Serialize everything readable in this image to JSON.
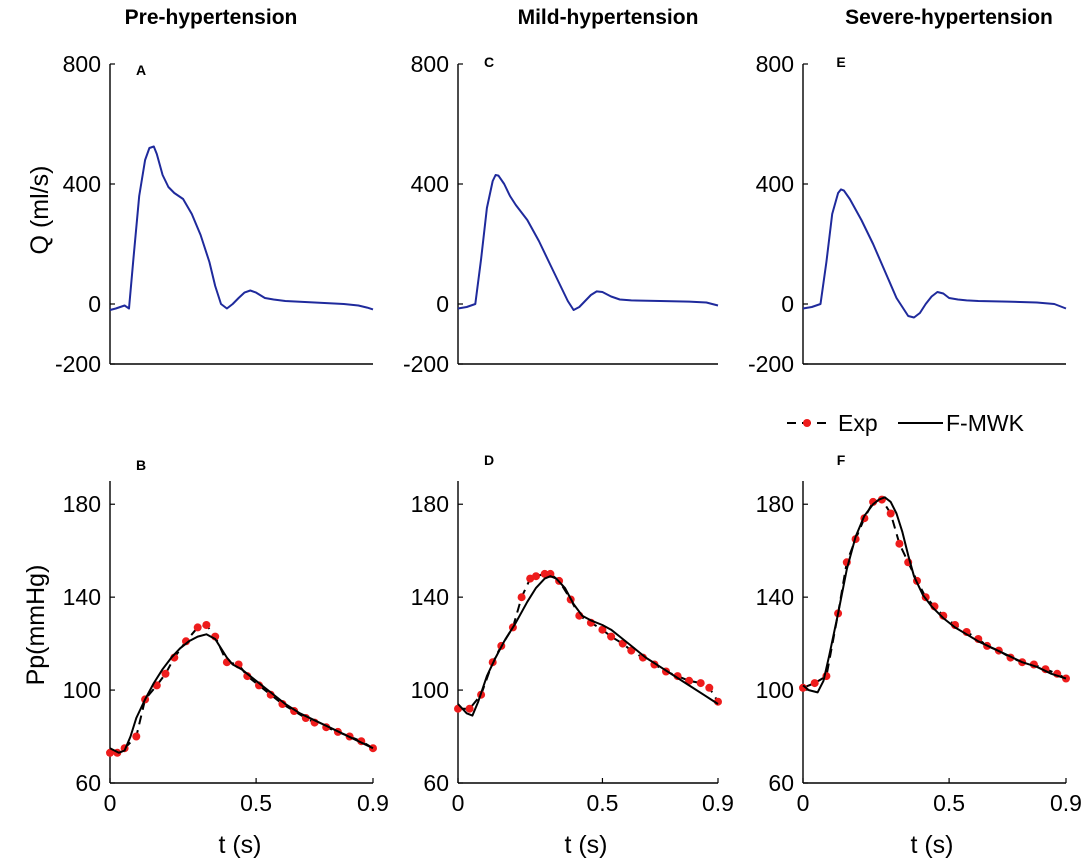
{
  "figure": {
    "columns": [
      "Pre-hypertension",
      "Mild-hypertension",
      "Severe-hypertension"
    ],
    "legend": {
      "exp": "Exp",
      "model": "F-MWK"
    }
  },
  "colors": {
    "flow": "#1f2a9c",
    "exp_marker": "#ee1c1c",
    "model": "#000000",
    "axis": "#000000"
  },
  "chart_data": [
    {
      "id": "A",
      "type": "line",
      "column": "Pre-hypertension",
      "ylabel": "Q (ml/s)",
      "xlabel": "",
      "xlim": [
        0,
        0.9
      ],
      "ylim": [
        -200,
        800
      ],
      "yticks": [
        -200,
        0,
        400,
        800
      ],
      "xticks": [],
      "series": [
        {
          "name": "Q",
          "role": "flow",
          "x": [
            0,
            0.02,
            0.05,
            0.065,
            0.08,
            0.1,
            0.12,
            0.135,
            0.15,
            0.16,
            0.18,
            0.2,
            0.22,
            0.25,
            0.28,
            0.31,
            0.34,
            0.36,
            0.38,
            0.4,
            0.42,
            0.44,
            0.46,
            0.48,
            0.5,
            0.53,
            0.56,
            0.6,
            0.7,
            0.8,
            0.85,
            0.88,
            0.9
          ],
          "y": [
            -20,
            -15,
            -5,
            -15,
            150,
            360,
            480,
            520,
            525,
            500,
            430,
            390,
            370,
            350,
            300,
            230,
            140,
            60,
            0,
            -15,
            0,
            20,
            38,
            45,
            38,
            20,
            15,
            10,
            5,
            0,
            -5,
            -12,
            -18
          ]
        }
      ]
    },
    {
      "id": "C",
      "type": "line",
      "column": "Mild-hypertension",
      "ylabel": "",
      "xlabel": "",
      "xlim": [
        0,
        0.9
      ],
      "ylim": [
        -200,
        800
      ],
      "yticks": [
        -200,
        0,
        400,
        800
      ],
      "xticks": [],
      "series": [
        {
          "name": "Q",
          "role": "flow",
          "x": [
            0,
            0.03,
            0.06,
            0.08,
            0.1,
            0.12,
            0.13,
            0.14,
            0.16,
            0.18,
            0.2,
            0.24,
            0.28,
            0.32,
            0.36,
            0.38,
            0.4,
            0.42,
            0.44,
            0.46,
            0.48,
            0.5,
            0.53,
            0.56,
            0.6,
            0.7,
            0.8,
            0.86,
            0.9
          ],
          "y": [
            -15,
            -10,
            0,
            150,
            320,
            410,
            430,
            428,
            400,
            360,
            330,
            280,
            210,
            130,
            50,
            10,
            -20,
            -10,
            10,
            30,
            42,
            40,
            25,
            15,
            12,
            10,
            8,
            5,
            -5
          ]
        }
      ]
    },
    {
      "id": "E",
      "type": "line",
      "column": "Severe-hypertension",
      "ylabel": "",
      "xlabel": "",
      "xlim": [
        0,
        0.9
      ],
      "ylim": [
        -200,
        800
      ],
      "yticks": [
        -200,
        0,
        400,
        800
      ],
      "xticks": [],
      "series": [
        {
          "name": "Q",
          "role": "flow",
          "x": [
            0,
            0.03,
            0.06,
            0.08,
            0.1,
            0.12,
            0.13,
            0.14,
            0.16,
            0.2,
            0.24,
            0.28,
            0.32,
            0.36,
            0.38,
            0.4,
            0.42,
            0.44,
            0.46,
            0.48,
            0.5,
            0.53,
            0.56,
            0.6,
            0.7,
            0.8,
            0.86,
            0.9
          ],
          "y": [
            -15,
            -10,
            0,
            140,
            300,
            370,
            382,
            378,
            350,
            280,
            200,
            110,
            20,
            -40,
            -45,
            -30,
            0,
            25,
            40,
            35,
            20,
            15,
            12,
            10,
            8,
            5,
            0,
            -15
          ]
        }
      ]
    },
    {
      "id": "B",
      "type": "line",
      "column": "Pre-hypertension",
      "ylabel": "Pp(mmHg)",
      "xlabel": "t (s)",
      "xlim": [
        0,
        0.9
      ],
      "ylim": [
        60,
        190
      ],
      "yticks": [
        60,
        100,
        140,
        180
      ],
      "xticks": [
        0,
        0.5,
        0.9
      ],
      "series": [
        {
          "name": "Exp",
          "role": "exp",
          "x": [
            0,
            0.025,
            0.05,
            0.09,
            0.12,
            0.16,
            0.19,
            0.22,
            0.26,
            0.3,
            0.33,
            0.36,
            0.4,
            0.44,
            0.47,
            0.51,
            0.55,
            0.59,
            0.63,
            0.67,
            0.7,
            0.74,
            0.78,
            0.82,
            0.86,
            0.9
          ],
          "y": [
            73,
            73,
            75,
            80,
            96,
            102,
            107,
            114,
            121,
            127,
            128,
            123,
            112,
            111,
            106,
            102,
            98,
            94,
            91,
            88,
            86,
            84,
            82,
            80,
            78,
            75
          ]
        },
        {
          "name": "F-MWK",
          "role": "model",
          "x": [
            0,
            0.03,
            0.05,
            0.07,
            0.09,
            0.12,
            0.15,
            0.18,
            0.21,
            0.24,
            0.27,
            0.3,
            0.33,
            0.36,
            0.38,
            0.4,
            0.42,
            0.45,
            0.5,
            0.55,
            0.6,
            0.65,
            0.7,
            0.75,
            0.8,
            0.85,
            0.9
          ],
          "y": [
            75,
            73,
            74,
            80,
            88,
            96,
            103,
            109,
            114,
            118,
            121,
            123,
            124,
            122,
            118,
            114,
            111,
            109,
            104,
            99,
            94,
            90,
            87,
            84,
            81,
            78,
            75
          ]
        }
      ]
    },
    {
      "id": "D",
      "type": "line",
      "column": "Mild-hypertension",
      "ylabel": "",
      "xlabel": "t (s)",
      "xlim": [
        0,
        0.9
      ],
      "ylim": [
        60,
        190
      ],
      "yticks": [
        60,
        100,
        140,
        180
      ],
      "xticks": [
        0,
        0.5,
        0.9
      ],
      "series": [
        {
          "name": "Exp",
          "role": "exp",
          "x": [
            0,
            0.04,
            0.08,
            0.12,
            0.15,
            0.19,
            0.22,
            0.25,
            0.27,
            0.3,
            0.32,
            0.35,
            0.39,
            0.42,
            0.46,
            0.5,
            0.53,
            0.57,
            0.6,
            0.64,
            0.68,
            0.72,
            0.76,
            0.8,
            0.84,
            0.87,
            0.9
          ],
          "y": [
            92,
            92,
            98,
            112,
            119,
            127,
            140,
            148,
            149,
            150,
            150,
            147,
            139,
            132,
            129,
            126,
            123,
            120,
            117,
            114,
            111,
            108,
            106,
            104,
            103,
            101,
            95
          ]
        },
        {
          "name": "F-MWK",
          "role": "model",
          "x": [
            0,
            0.03,
            0.05,
            0.07,
            0.1,
            0.13,
            0.16,
            0.2,
            0.24,
            0.27,
            0.3,
            0.32,
            0.34,
            0.37,
            0.4,
            0.43,
            0.46,
            0.5,
            0.53,
            0.56,
            0.6,
            0.65,
            0.7,
            0.75,
            0.8,
            0.85,
            0.9
          ],
          "y": [
            94,
            90,
            89,
            95,
            106,
            114,
            121,
            129,
            138,
            144,
            148,
            149,
            148,
            144,
            137,
            132,
            130,
            128,
            126,
            123,
            119,
            114,
            110,
            106,
            102,
            98,
            94
          ]
        }
      ]
    },
    {
      "id": "F",
      "type": "line",
      "column": "Severe-hypertension",
      "ylabel": "",
      "xlabel": "t (s)",
      "xlim": [
        0,
        0.9
      ],
      "ylim": [
        60,
        190
      ],
      "yticks": [
        60,
        100,
        140,
        180
      ],
      "xticks": [
        0,
        0.5,
        0.9
      ],
      "series": [
        {
          "name": "Exp",
          "role": "exp",
          "x": [
            0,
            0.04,
            0.08,
            0.12,
            0.15,
            0.18,
            0.21,
            0.24,
            0.27,
            0.3,
            0.33,
            0.36,
            0.39,
            0.42,
            0.45,
            0.48,
            0.52,
            0.56,
            0.6,
            0.63,
            0.67,
            0.71,
            0.75,
            0.79,
            0.83,
            0.87,
            0.9
          ],
          "y": [
            101,
            103,
            106,
            133,
            155,
            165,
            174,
            181,
            182,
            176,
            163,
            155,
            147,
            140,
            136,
            132,
            128,
            125,
            122,
            119,
            117,
            114,
            112,
            111,
            109,
            107,
            105
          ]
        },
        {
          "name": "F-MWK",
          "role": "model",
          "x": [
            0,
            0.02,
            0.05,
            0.07,
            0.09,
            0.12,
            0.15,
            0.18,
            0.21,
            0.24,
            0.26,
            0.28,
            0.3,
            0.32,
            0.34,
            0.36,
            0.38,
            0.41,
            0.44,
            0.48,
            0.52,
            0.56,
            0.6,
            0.65,
            0.7,
            0.75,
            0.8,
            0.85,
            0.9
          ],
          "y": [
            102,
            100,
            99,
            104,
            115,
            133,
            152,
            166,
            175,
            180,
            182,
            183,
            181,
            176,
            168,
            158,
            149,
            141,
            136,
            131,
            127,
            124,
            121,
            118,
            115,
            112,
            110,
            107,
            105
          ]
        }
      ]
    }
  ]
}
